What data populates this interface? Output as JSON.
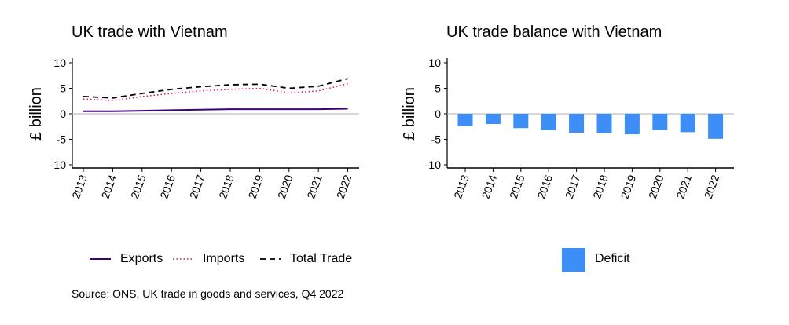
{
  "source": "Source: ONS, UK trade in goods and services, Q4 2022",
  "colors": {
    "exports": "#3f007d",
    "imports": "#e0115f",
    "total": "#000000",
    "deficit": "#3e8ef7",
    "zero_line": "#b0b0b0"
  },
  "chart_data": [
    {
      "type": "line",
      "title": "UK trade with Vietnam",
      "ylabel": "£ billion",
      "xlabel": "",
      "x": [
        "2013",
        "2014",
        "2015",
        "2016",
        "2017",
        "2018",
        "2019",
        "2020",
        "2021",
        "2022"
      ],
      "ylim": [
        -10,
        10
      ],
      "yticks": [
        "10",
        "5",
        "0",
        "-5",
        "-10"
      ],
      "grid": false,
      "legend_position": "bottom",
      "series": [
        {
          "name": "Exports",
          "style": "solid",
          "values": [
            0.5,
            0.5,
            0.6,
            0.7,
            0.8,
            0.9,
            0.9,
            0.9,
            0.9,
            1.0
          ]
        },
        {
          "name": "Imports",
          "style": "dotted",
          "values": [
            2.9,
            2.6,
            3.4,
            4.0,
            4.5,
            4.8,
            5.0,
            4.1,
            4.5,
            5.9
          ]
        },
        {
          "name": "Total Trade",
          "style": "dashed",
          "values": [
            3.4,
            3.1,
            4.0,
            4.8,
            5.3,
            5.7,
            5.8,
            5.0,
            5.4,
            6.9
          ]
        }
      ]
    },
    {
      "type": "bar",
      "title": "UK trade balance with Vietnam",
      "ylabel": "£ billion",
      "xlabel": "",
      "categories": [
        "2013",
        "2014",
        "2015",
        "2016",
        "2017",
        "2018",
        "2019",
        "2020",
        "2021",
        "2022"
      ],
      "ylim": [
        -10,
        10
      ],
      "yticks": [
        "10",
        "5",
        "0",
        "-5",
        "-10"
      ],
      "grid": false,
      "legend_position": "bottom",
      "series": [
        {
          "name": "Deficit",
          "values": [
            -2.4,
            -2.0,
            -2.8,
            -3.2,
            -3.7,
            -3.8,
            -4.0,
            -3.2,
            -3.6,
            -4.9
          ]
        }
      ]
    }
  ]
}
